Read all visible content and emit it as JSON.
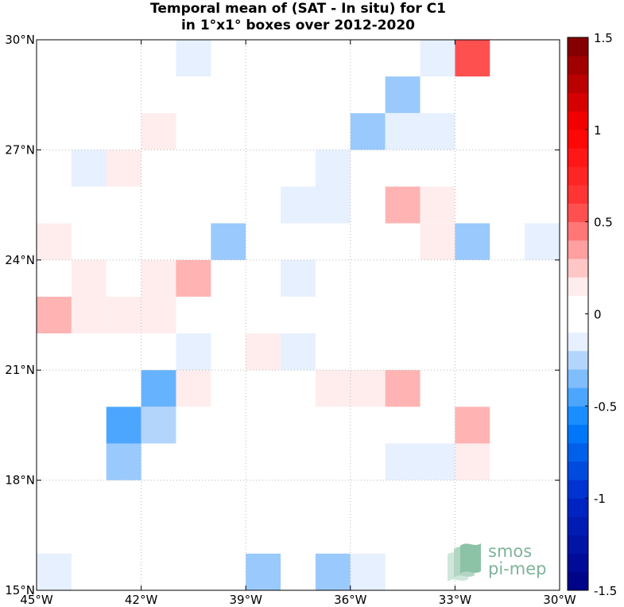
{
  "chart_data": {
    "type": "heatmap",
    "title_lines": [
      "Temporal mean of (SAT - In situ) for C1",
      "in 1°x1° boxes over 2012-2020"
    ],
    "x_range": [
      -45,
      -30
    ],
    "y_range": [
      15,
      30
    ],
    "x_ticks": [
      {
        "value": -45,
        "label": "45°W"
      },
      {
        "value": -42,
        "label": "42°W"
      },
      {
        "value": -39,
        "label": "39°W"
      },
      {
        "value": -36,
        "label": "36°W"
      },
      {
        "value": -33,
        "label": "33°W"
      },
      {
        "value": -30,
        "label": "30°W"
      }
    ],
    "y_ticks": [
      {
        "value": 15,
        "label": "15°N"
      },
      {
        "value": 18,
        "label": "18°N"
      },
      {
        "value": 21,
        "label": "21°N"
      },
      {
        "value": 24,
        "label": "24°N"
      },
      {
        "value": 27,
        "label": "27°N"
      },
      {
        "value": 30,
        "label": "30°N"
      }
    ],
    "grid": true,
    "colorbar": {
      "range": [
        -1.5,
        1.5
      ],
      "step": 0.1,
      "position": "right",
      "ticks": [
        {
          "value": 1.5,
          "label": "1.5"
        },
        {
          "value": 1,
          "label": "1"
        },
        {
          "value": 0.5,
          "label": "0.5"
        },
        {
          "value": 0,
          "label": "0"
        },
        {
          "value": -0.5,
          "label": "-0.5"
        },
        {
          "value": -1,
          "label": "-1"
        },
        {
          "value": -1.5,
          "label": "-1.5"
        }
      ]
    },
    "cells": [
      {
        "lon": -41,
        "lat": 29,
        "value": -0.15
      },
      {
        "lon": -34,
        "lat": 29,
        "value": -0.15
      },
      {
        "lon": -33,
        "lat": 29,
        "value": 0.55
      },
      {
        "lon": -35,
        "lat": 28,
        "value": -0.3
      },
      {
        "lon": -42,
        "lat": 27,
        "value": 0.15
      },
      {
        "lon": -36,
        "lat": 27,
        "value": -0.3
      },
      {
        "lon": -35,
        "lat": 27,
        "value": -0.15
      },
      {
        "lon": -34,
        "lat": 27,
        "value": -0.15
      },
      {
        "lon": -44,
        "lat": 26,
        "value": -0.15
      },
      {
        "lon": -43,
        "lat": 26,
        "value": 0.15
      },
      {
        "lon": -37,
        "lat": 26,
        "value": -0.15
      },
      {
        "lon": -38,
        "lat": 25,
        "value": -0.15
      },
      {
        "lon": -37,
        "lat": 25,
        "value": -0.15
      },
      {
        "lon": -35,
        "lat": 25,
        "value": 0.3
      },
      {
        "lon": -34,
        "lat": 25,
        "value": 0.15
      },
      {
        "lon": -45,
        "lat": 24,
        "value": 0.15
      },
      {
        "lon": -40,
        "lat": 24,
        "value": -0.3
      },
      {
        "lon": -34,
        "lat": 24,
        "value": 0.15
      },
      {
        "lon": -33,
        "lat": 24,
        "value": -0.3
      },
      {
        "lon": -31,
        "lat": 24,
        "value": -0.15
      },
      {
        "lon": -44,
        "lat": 23,
        "value": 0.15
      },
      {
        "lon": -42,
        "lat": 23,
        "value": 0.15
      },
      {
        "lon": -41,
        "lat": 23,
        "value": 0.3
      },
      {
        "lon": -38,
        "lat": 23,
        "value": -0.15
      },
      {
        "lon": -45,
        "lat": 22,
        "value": 0.3
      },
      {
        "lon": -44,
        "lat": 22,
        "value": 0.15
      },
      {
        "lon": -43,
        "lat": 22,
        "value": 0.15
      },
      {
        "lon": -42,
        "lat": 22,
        "value": 0.15
      },
      {
        "lon": -41,
        "lat": 21,
        "value": -0.15
      },
      {
        "lon": -39,
        "lat": 21,
        "value": 0.15
      },
      {
        "lon": -38,
        "lat": 21,
        "value": -0.15
      },
      {
        "lon": -42,
        "lat": 20,
        "value": -0.4
      },
      {
        "lon": -41,
        "lat": 20,
        "value": 0.15
      },
      {
        "lon": -37,
        "lat": 20,
        "value": 0.15
      },
      {
        "lon": -36,
        "lat": 20,
        "value": 0.15
      },
      {
        "lon": -35,
        "lat": 20,
        "value": 0.3
      },
      {
        "lon": -43,
        "lat": 19,
        "value": -0.45
      },
      {
        "lon": -42,
        "lat": 19,
        "value": -0.25
      },
      {
        "lon": -33,
        "lat": 19,
        "value": 0.3
      },
      {
        "lon": -43,
        "lat": 18,
        "value": -0.3
      },
      {
        "lon": -35,
        "lat": 18,
        "value": -0.15
      },
      {
        "lon": -34,
        "lat": 18,
        "value": -0.15
      },
      {
        "lon": -33,
        "lat": 18,
        "value": 0.15
      },
      {
        "lon": -45,
        "lat": 15,
        "value": -0.15
      },
      {
        "lon": -39,
        "lat": 15,
        "value": -0.3
      },
      {
        "lon": -37,
        "lat": 15,
        "value": -0.3
      },
      {
        "lon": -36,
        "lat": 15,
        "value": -0.15
      }
    ]
  },
  "logo": {
    "line1": "smos",
    "line2": "pi-mep"
  }
}
